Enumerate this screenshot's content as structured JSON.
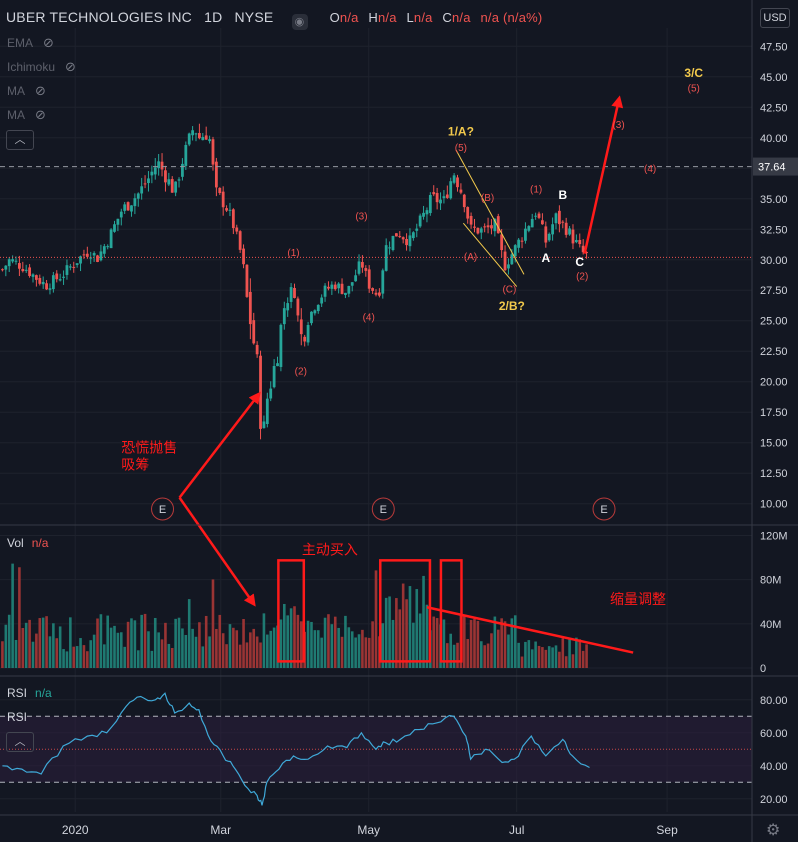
{
  "header": {
    "symbol": "UBER TECHNOLOGIES INC",
    "interval": "1D",
    "exchange": "NYSE",
    "ohlc": [
      {
        "k": "O",
        "v": "n/a"
      },
      {
        "k": "H",
        "v": "n/a"
      },
      {
        "k": "L",
        "v": "n/a"
      },
      {
        "k": "C",
        "v": "n/a"
      }
    ],
    "change": "n/a (n/a%)",
    "currency": "USD"
  },
  "indicators": [
    "EMA",
    "Ichimoku",
    "MA",
    "MA"
  ],
  "volume_pane": {
    "label": "Vol",
    "value": "n/a"
  },
  "rsi_pane": {
    "label": "RSI",
    "value": "n/a",
    "label2": "RSI"
  },
  "colors": {
    "up": "#26a69a",
    "down": "#ef5350",
    "annotation": "#ff1a1a",
    "wave_yellow": "#f2c94c",
    "bg": "#131722",
    "rsi_line": "#3fa9d8",
    "rsi_band": "#2b1f3d"
  },
  "chart_data": [
    {
      "type": "candlestick",
      "title": "UBER TECHNOLOGIES INC, 1D, NYSE",
      "x_tick_labels": [
        "2020",
        "Mar",
        "May",
        "Jul",
        "Sep"
      ],
      "y_ticks": [
        10.0,
        12.5,
        15.0,
        17.5,
        20.0,
        22.5,
        25.0,
        27.5,
        30.0,
        32.5,
        35.0,
        37.5,
        40.0,
        42.5,
        45.0,
        47.5
      ],
      "y_tick_labels": [
        "10.00",
        "12.50",
        "15.00",
        "17.50",
        "20.00",
        "22.50",
        "25.00",
        "27.50",
        "30.00",
        "32.50",
        "35.00",
        "37.50",
        "40.00",
        "42.50",
        "45.00",
        "47.50"
      ],
      "ylim": [
        8.5,
        49.0
      ],
      "horizontal_lines": [
        {
          "value": 37.64,
          "label": "37.64",
          "style": "dashed"
        },
        {
          "value": 30.2,
          "style": "dotted"
        }
      ],
      "close_path": [
        [
          "2019-12-02",
          29.2
        ],
        [
          "2019-12-05",
          30.0
        ],
        [
          "2019-12-11",
          29.4
        ],
        [
          "2019-12-16",
          28.5
        ],
        [
          "2019-12-20",
          27.9
        ],
        [
          "2019-12-27",
          28.8
        ],
        [
          "2020-01-02",
          30.0
        ],
        [
          "2020-01-07",
          30.8
        ],
        [
          "2020-01-10",
          30.1
        ],
        [
          "2020-01-15",
          31.8
        ],
        [
          "2020-01-20",
          34.0
        ],
        [
          "2020-01-27",
          35.4
        ],
        [
          "2020-01-31",
          36.6
        ],
        [
          "2020-02-04",
          38.0
        ],
        [
          "2020-02-07",
          37.0
        ],
        [
          "2020-02-11",
          35.5
        ],
        [
          "2020-02-14",
          38.0
        ],
        [
          "2020-02-19",
          41.0
        ],
        [
          "2020-02-21",
          40.0
        ],
        [
          "2020-02-25",
          40.5
        ],
        [
          "2020-02-28",
          35.5
        ],
        [
          "2020-03-03",
          34.5
        ],
        [
          "2020-03-06",
          33.0
        ],
        [
          "2020-03-10",
          30.0
        ],
        [
          "2020-03-12",
          26.5
        ],
        [
          "2020-03-16",
          21.5
        ],
        [
          "2020-03-18",
          14.8
        ],
        [
          "2020-03-20",
          18.5
        ],
        [
          "2020-03-24",
          22.0
        ],
        [
          "2020-03-27",
          26.0
        ],
        [
          "2020-03-31",
          27.9
        ],
        [
          "2020-04-03",
          23.6
        ],
        [
          "2020-04-08",
          26.0
        ],
        [
          "2020-04-13",
          27.5
        ],
        [
          "2020-04-17",
          28.0
        ],
        [
          "2020-04-22",
          27.3
        ],
        [
          "2020-04-28",
          29.8
        ],
        [
          "2020-05-01",
          28.0
        ],
        [
          "2020-05-05",
          27.0
        ],
        [
          "2020-05-08",
          31.0
        ],
        [
          "2020-05-13",
          32.3
        ],
        [
          "2020-05-18",
          31.5
        ],
        [
          "2020-05-22",
          33.0
        ],
        [
          "2020-05-27",
          35.0
        ],
        [
          "2020-06-01",
          34.8
        ],
        [
          "2020-06-05",
          37.2
        ],
        [
          "2020-06-09",
          35.2
        ],
        [
          "2020-06-12",
          32.5
        ],
        [
          "2020-06-17",
          32.4
        ],
        [
          "2020-06-22",
          32.8
        ],
        [
          "2020-06-26",
          29.5
        ],
        [
          "2020-06-30",
          30.8
        ],
        [
          "2020-07-06",
          33.0
        ],
        [
          "2020-07-09",
          34.0
        ],
        [
          "2020-07-13",
          31.5
        ],
        [
          "2020-07-17",
          33.5
        ],
        [
          "2020-07-21",
          32.7
        ],
        [
          "2020-07-24",
          31.8
        ],
        [
          "2020-07-28",
          30.6
        ],
        [
          "2020-07-31",
          30.2
        ]
      ],
      "wave_labels": [
        {
          "text": "(1)",
          "date": "2020-03-31",
          "price": 30.3,
          "color": "red"
        },
        {
          "text": "(2)",
          "date": "2020-04-03",
          "price": 20.6,
          "color": "red"
        },
        {
          "text": "(3)",
          "date": "2020-04-28",
          "price": 33.3,
          "color": "red"
        },
        {
          "text": "(4)",
          "date": "2020-05-01",
          "price": 25.0,
          "color": "red"
        },
        {
          "text": "(5)",
          "date": "2020-06-08",
          "price": 38.9,
          "color": "red"
        },
        {
          "text": "1/A?",
          "date": "2020-06-08",
          "price": 40.2,
          "color": "yellow"
        },
        {
          "text": "(A)",
          "date": "2020-06-12",
          "price": 30.0,
          "color": "red"
        },
        {
          "text": "(B)",
          "date": "2020-06-19",
          "price": 34.8,
          "color": "red"
        },
        {
          "text": "(C)",
          "date": "2020-06-28",
          "price": 27.3,
          "color": "red"
        },
        {
          "text": "2/B?",
          "date": "2020-06-29",
          "price": 25.9,
          "color": "yellow"
        },
        {
          "text": "(1)",
          "date": "2020-07-09",
          "price": 35.5,
          "color": "red"
        },
        {
          "text": "A",
          "date": "2020-07-13",
          "price": 29.8,
          "color": "white"
        },
        {
          "text": "B",
          "date": "2020-07-20",
          "price": 35.0,
          "color": "white"
        },
        {
          "text": "C",
          "date": "2020-07-27",
          "price": 29.5,
          "color": "white"
        },
        {
          "text": "(2)",
          "date": "2020-07-28",
          "price": 28.4,
          "color": "red"
        },
        {
          "text": "(3)",
          "date": "2020-08-12",
          "price": 40.8,
          "color": "red"
        },
        {
          "text": "(4)",
          "date": "2020-08-25",
          "price": 37.2,
          "color": "red"
        },
        {
          "text": "3/C",
          "date": "2020-09-12",
          "price": 45.0,
          "color": "yellow"
        },
        {
          "text": "(5)",
          "date": "2020-09-12",
          "price": 43.8,
          "color": "red"
        }
      ],
      "earnings_markers": [
        {
          "text": "E",
          "date": "2020-02-06"
        },
        {
          "text": "E",
          "date": "2020-05-07"
        },
        {
          "text": "E",
          "date": "2020-08-06"
        }
      ],
      "annotations": [
        {
          "text": "恐慌抛售",
          "date": "2020-01-20",
          "price": 14.2
        },
        {
          "text": "吸筹",
          "date": "2020-01-20",
          "price": 12.8
        }
      ]
    },
    {
      "type": "bar",
      "title": "Vol",
      "y_ticks": [
        0,
        40,
        80,
        120
      ],
      "y_tick_labels": [
        "0",
        "40M",
        "80M",
        "120M"
      ],
      "ylim": [
        0,
        125
      ],
      "units": "M",
      "highlights": [
        {
          "from": "2020-03-26",
          "to": "2020-04-03"
        },
        {
          "from": "2020-05-07",
          "to": "2020-05-25"
        },
        {
          "from": "2020-06-01",
          "to": "2020-06-07"
        }
      ],
      "annotations": [
        {
          "text": "主动买入",
          "date": "2020-04-15",
          "value": 103
        },
        {
          "text": "缩量调整",
          "date": "2020-08-20",
          "value": 58
        }
      ],
      "trend_line": [
        [
          "2020-05-25",
          55
        ],
        [
          "2020-08-18",
          14
        ]
      ]
    },
    {
      "type": "line",
      "title": "RSI",
      "y_ticks": [
        20,
        40,
        60,
        80
      ],
      "y_tick_labels": [
        "20.00",
        "40.00",
        "60.00",
        "80.00"
      ],
      "ylim": [
        12,
        92
      ],
      "bands": [
        30,
        50,
        70
      ],
      "points": [
        [
          "2019-12-02",
          40
        ],
        [
          "2019-12-10",
          38
        ],
        [
          "2019-12-18",
          35
        ],
        [
          "2019-12-27",
          52
        ],
        [
          "2020-01-06",
          58
        ],
        [
          "2020-01-14",
          60
        ],
        [
          "2020-01-22",
          76
        ],
        [
          "2020-01-28",
          82
        ],
        [
          "2020-02-03",
          80
        ],
        [
          "2020-02-07",
          84
        ],
        [
          "2020-02-11",
          72
        ],
        [
          "2020-02-17",
          78
        ],
        [
          "2020-02-21",
          74
        ],
        [
          "2020-02-26",
          55
        ],
        [
          "2020-03-02",
          46
        ],
        [
          "2020-03-06",
          40
        ],
        [
          "2020-03-11",
          28
        ],
        [
          "2020-03-16",
          22
        ],
        [
          "2020-03-18",
          16
        ],
        [
          "2020-03-20",
          30
        ],
        [
          "2020-03-25",
          38
        ],
        [
          "2020-03-31",
          46
        ],
        [
          "2020-04-06",
          44
        ],
        [
          "2020-04-14",
          52
        ],
        [
          "2020-04-22",
          51
        ],
        [
          "2020-04-28",
          60
        ],
        [
          "2020-05-04",
          50
        ],
        [
          "2020-05-08",
          54
        ],
        [
          "2020-05-14",
          56
        ],
        [
          "2020-05-22",
          62
        ],
        [
          "2020-05-29",
          66
        ],
        [
          "2020-06-05",
          70
        ],
        [
          "2020-06-10",
          58
        ],
        [
          "2020-06-12",
          44
        ],
        [
          "2020-06-18",
          50
        ],
        [
          "2020-06-25",
          42
        ],
        [
          "2020-06-30",
          44
        ],
        [
          "2020-07-07",
          58
        ],
        [
          "2020-07-13",
          46
        ],
        [
          "2020-07-20",
          56
        ],
        [
          "2020-07-24",
          46
        ],
        [
          "2020-07-31",
          39
        ]
      ]
    }
  ]
}
